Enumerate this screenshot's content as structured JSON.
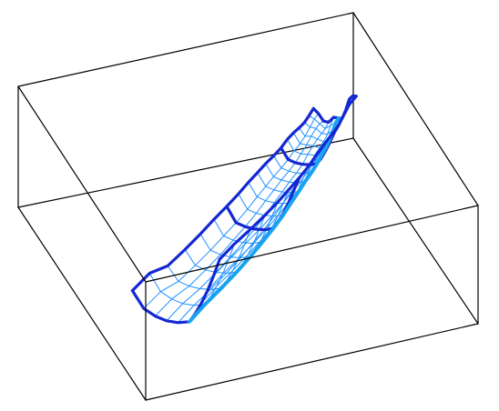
{
  "figure": {
    "kind": "3d wireframe surface inside bounding box",
    "colors": {
      "background": "#ffffff",
      "box_edges": "#000000",
      "mesh_lines": "#1e90ff",
      "bold_ridge_lines": "#1428d2",
      "center_line": "#1aa3f0"
    },
    "mesh": {
      "rows": 19,
      "columns": 11,
      "bold_row_interval": 6,
      "bold_column_indices": [
        0,
        10
      ],
      "center_column_index": 5
    }
  }
}
